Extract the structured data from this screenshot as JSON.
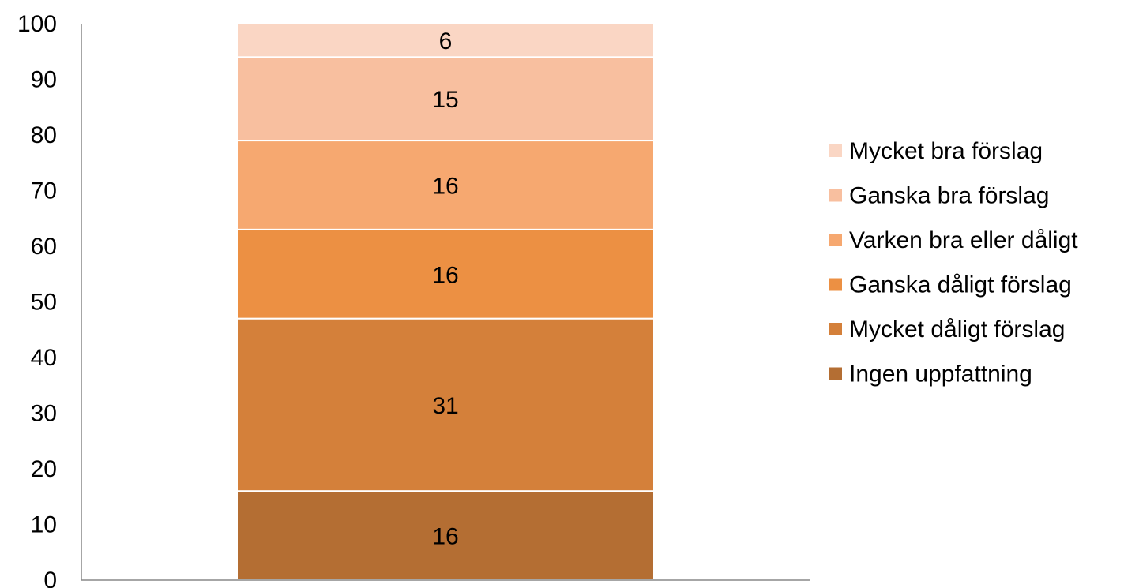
{
  "chart_data": {
    "type": "bar",
    "stacked": true,
    "categories": [
      ""
    ],
    "ylim": [
      0,
      100
    ],
    "yticks": [
      0,
      10,
      20,
      30,
      40,
      50,
      60,
      70,
      80,
      90,
      100
    ],
    "ytick_labels": [
      "0",
      "10",
      "20",
      "30",
      "40",
      "50",
      "60",
      "70",
      "80",
      "90",
      "100"
    ],
    "grid": false,
    "legend_position": "right",
    "series": [
      {
        "name": "Ingen uppfattning",
        "values": [
          16
        ],
        "label": "16",
        "color": "#b46e33"
      },
      {
        "name": "Mycket dåligt förslag",
        "values": [
          31
        ],
        "label": "31",
        "color": "#d4803a"
      },
      {
        "name": "Ganska dåligt förslag",
        "values": [
          16
        ],
        "label": "16",
        "color": "#ec9043"
      },
      {
        "name": "Varken bra eller dåligt",
        "values": [
          16
        ],
        "label": "16",
        "color": "#f6a870"
      },
      {
        "name": "Ganska bra förslag",
        "values": [
          15
        ],
        "label": "15",
        "color": "#f8bf9f"
      },
      {
        "name": "Mycket bra förslag",
        "values": [
          6
        ],
        "label": "6",
        "color": "#fad6c4"
      }
    ],
    "legend_order": [
      "Mycket bra förslag",
      "Ganska bra förslag",
      "Varken bra eller dåligt",
      "Ganska dåligt förslag",
      "Mycket dåligt förslag",
      "Ingen uppfattning"
    ]
  }
}
